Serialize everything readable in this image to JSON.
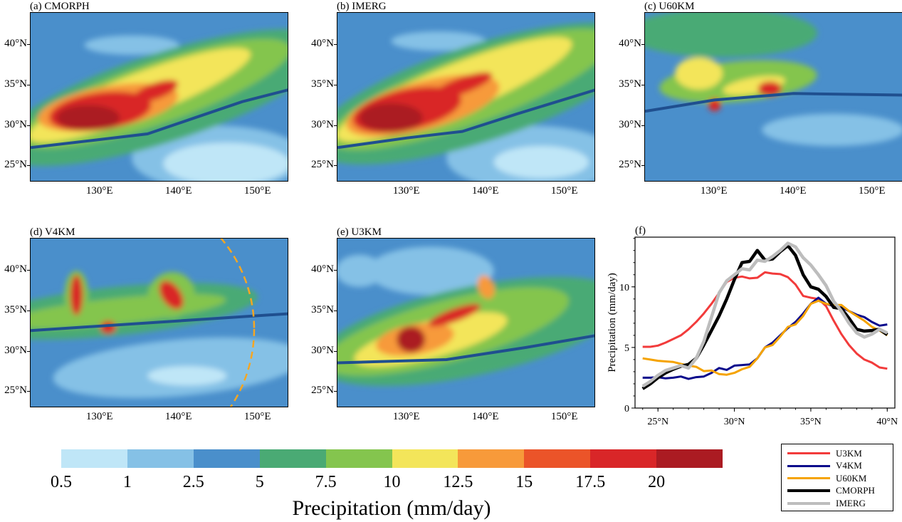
{
  "colors": {
    "levels": [
      "#bfe6f7",
      "#85c1e6",
      "#4a8fcb",
      "#4aaa74",
      "#84c54e",
      "#f3e55a",
      "#f79a3a",
      "#eb5429",
      "#d92628",
      "#ab1b22"
    ],
    "front_line": "#1f4f8f",
    "circle": "#f5a623"
  },
  "panels": [
    {
      "title": "(a) CMORPH"
    },
    {
      "title": "(b) IMERG"
    },
    {
      "title": "(c) U60KM"
    },
    {
      "title": "(d) V4KM"
    },
    {
      "title": "(e) U3KM"
    }
  ],
  "map_axes": {
    "lat_ticks": [
      "40°N",
      "35°N",
      "30°N",
      "25°N"
    ],
    "lon_ticks": [
      "130°E",
      "140°E",
      "150°E"
    ]
  },
  "colorbar": {
    "labels": [
      "0.5",
      "1",
      "2.5",
      "5",
      "7.5",
      "10",
      "12.5",
      "15",
      "17.5",
      "20"
    ],
    "title": "Precipitation (mm/day)"
  },
  "chart_data": {
    "type": "line",
    "title": "(f)",
    "xlabel": "",
    "ylabel": "Precipitation (mm/day)",
    "xlim": [
      23.5,
      40.5
    ],
    "ylim": [
      0,
      14.1
    ],
    "x_ticks": [
      "25°N",
      "30°N",
      "35°N",
      "40°N"
    ],
    "y_ticks": [
      "0",
      "5",
      "10"
    ],
    "grid": false,
    "legend_position": "outside-bottom-right",
    "x": [
      24,
      24.5,
      25,
      25.5,
      26,
      26.5,
      27,
      27.5,
      28,
      28.5,
      29,
      29.5,
      30,
      30.5,
      31,
      31.5,
      32,
      32.5,
      33,
      33.5,
      34,
      34.5,
      35,
      35.5,
      36,
      36.5,
      37,
      37.5,
      38,
      38.5,
      39,
      39.5,
      40
    ],
    "series": [
      {
        "name": "U3KM",
        "color": "#f23b3b",
        "values": [
          5.05,
          5.05,
          5.15,
          5.4,
          5.7,
          6.0,
          6.5,
          7.1,
          7.8,
          8.6,
          9.5,
          10.4,
          10.75,
          10.85,
          10.7,
          10.75,
          11.2,
          11.1,
          11.05,
          10.8,
          10.2,
          9.25,
          9.1,
          9.0,
          8.4,
          7.2,
          6.1,
          5.2,
          4.5,
          4.0,
          3.75,
          3.35,
          3.25
        ]
      },
      {
        "name": "V4KM",
        "color": "#0a0a8c",
        "values": [
          2.5,
          2.5,
          2.55,
          2.45,
          2.5,
          2.6,
          2.4,
          2.55,
          2.6,
          2.9,
          3.3,
          3.15,
          3.5,
          3.55,
          3.6,
          4.1,
          5.0,
          5.4,
          6.0,
          6.6,
          7.1,
          7.8,
          8.6,
          9.1,
          8.6,
          8.4,
          8.3,
          8.0,
          7.7,
          7.5,
          7.1,
          6.8,
          6.9
        ]
      },
      {
        "name": "U60KM",
        "color": "#f5a300",
        "values": [
          4.1,
          4.0,
          3.9,
          3.85,
          3.8,
          3.65,
          3.5,
          3.4,
          3.05,
          3.1,
          2.8,
          2.75,
          2.9,
          3.2,
          3.4,
          4.1,
          5.0,
          5.2,
          5.9,
          6.7,
          6.9,
          7.6,
          8.6,
          8.85,
          8.6,
          8.5,
          8.5,
          8.0,
          7.6,
          7.2,
          6.7,
          6.4,
          6.0
        ]
      },
      {
        "name": "CMORPH",
        "color": "#000000",
        "values": [
          1.6,
          2.0,
          2.5,
          2.9,
          3.2,
          3.45,
          3.6,
          4.1,
          5.2,
          6.4,
          7.6,
          9.0,
          10.6,
          12.0,
          12.1,
          13.0,
          12.2,
          12.3,
          12.9,
          13.4,
          12.6,
          11.0,
          10.0,
          9.8,
          9.2,
          8.3,
          8.2,
          7.4,
          6.5,
          6.35,
          6.4,
          6.5,
          6.05
        ]
      },
      {
        "name": "IMERG",
        "color": "#bdbdbd",
        "values": [
          1.8,
          2.2,
          2.7,
          3.1,
          3.3,
          3.5,
          3.3,
          4.1,
          5.5,
          7.5,
          9.5,
          10.5,
          11.0,
          11.5,
          11.4,
          12.2,
          12.1,
          12.5,
          13.0,
          13.6,
          13.3,
          12.4,
          11.8,
          11.0,
          10.1,
          8.8,
          8.0,
          7.0,
          6.2,
          5.85,
          6.1,
          6.5,
          6.2
        ]
      }
    ]
  }
}
